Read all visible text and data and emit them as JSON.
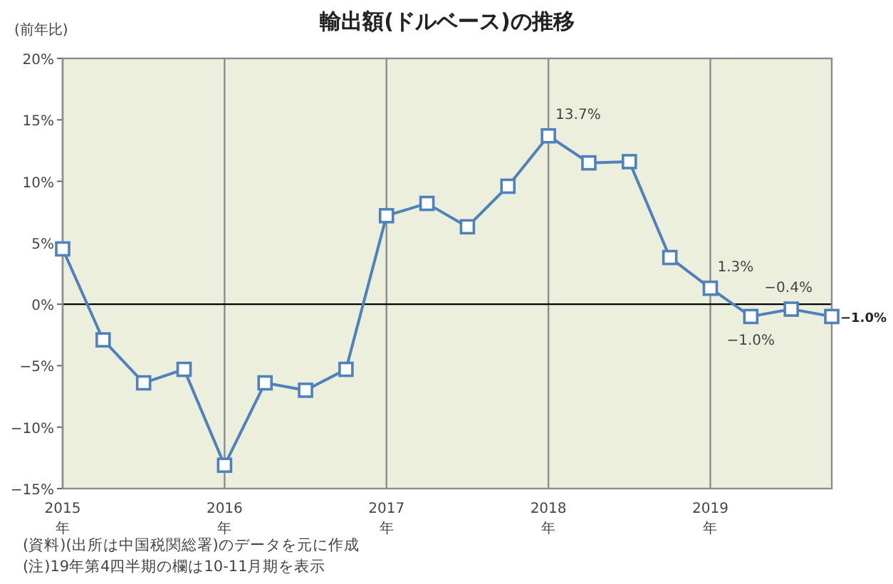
{
  "chart_data": {
    "type": "line",
    "title": "輸出額(ドルベース)の推移",
    "ylabel": "(前年比)",
    "x": [
      2015,
      2015.25,
      2015.5,
      2015.75,
      2016,
      2016.25,
      2016.5,
      2016.75,
      2017,
      2017.25,
      2017.5,
      2017.75,
      2018,
      2018.25,
      2018.5,
      2018.75,
      2019,
      2019.25,
      2019.5,
      2019.75
    ],
    "series": [
      {
        "color": "#4f81bd",
        "values": [
          4.5,
          -2.9,
          -6.4,
          -5.3,
          -13.1,
          -6.4,
          -7.0,
          -5.3,
          7.2,
          8.2,
          6.3,
          9.6,
          13.7,
          11.5,
          11.6,
          3.8,
          1.3,
          -1.0,
          -0.4,
          -1.0
        ],
        "value_labels": [
          null,
          null,
          null,
          null,
          null,
          null,
          null,
          null,
          null,
          null,
          null,
          null,
          "13.7%",
          null,
          null,
          null,
          "1.3%",
          "−1.0%",
          "−0.4%",
          "−1.0%"
        ]
      }
    ],
    "xlim": [
      2015,
      2019.75
    ],
    "ylim": [
      -15,
      20
    ],
    "xticks": [
      {
        "value": 2015,
        "label": "2015\n年"
      },
      {
        "value": 2016,
        "label": "2016\n年"
      },
      {
        "value": 2017,
        "label": "2017\n年"
      },
      {
        "value": 2018,
        "label": "2018\n年"
      },
      {
        "value": 2019,
        "label": "2019\n年"
      }
    ],
    "yticks": [
      {
        "value": -15,
        "label": "−15%"
      },
      {
        "value": -10,
        "label": "−10%"
      },
      {
        "value": -5,
        "label": "−5%"
      },
      {
        "value": 0,
        "label": "0%"
      },
      {
        "value": 5,
        "label": "5%"
      },
      {
        "value": 10,
        "label": "10%"
      },
      {
        "value": 15,
        "label": "15%"
      },
      {
        "value": 20,
        "label": "20%"
      }
    ],
    "grid": "x",
    "marker": "square",
    "line_style": "solid",
    "ref_lines": [
      {
        "axis": "y",
        "value": 0,
        "color": "#000000"
      }
    ],
    "annotations": [
      "(資料)(出所は中国税関総署)のデータを元に作成",
      "(注)19年第4四半期の欄は10-11月期を表示"
    ]
  }
}
